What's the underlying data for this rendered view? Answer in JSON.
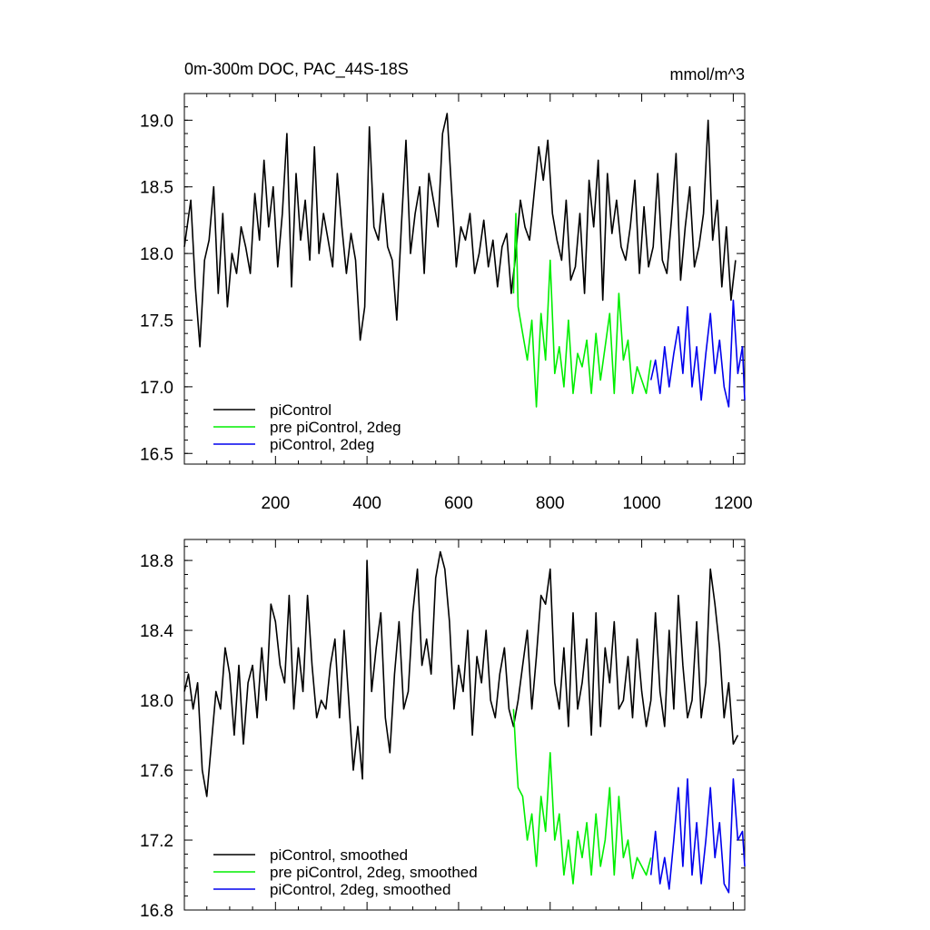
{
  "chart_data": [
    {
      "type": "line",
      "title": "0m-300m DOC, PAC_44S-18S",
      "units": "mmol/m^3",
      "xlim": [
        1,
        1225
      ],
      "ylim": [
        16.42,
        19.2
      ],
      "x_ticks": [
        200,
        400,
        600,
        800,
        1000,
        1200
      ],
      "x_tick_labels": [
        "200",
        "400",
        "600",
        "800",
        "1000",
        "1200"
      ],
      "y_ticks": [
        16.5,
        17.0,
        17.5,
        18.0,
        18.5,
        19.0
      ],
      "y_tick_labels": [
        "16.5",
        "17.0",
        "17.5",
        "18.0",
        "18.5",
        "19.0"
      ],
      "legend_position": "bottom-left",
      "series": [
        {
          "name": "piControl",
          "color": "#000000",
          "x": [
            1,
            15,
            25,
            35,
            45,
            55,
            65,
            75,
            85,
            95,
            105,
            115,
            125,
            135,
            145,
            155,
            165,
            175,
            185,
            195,
            205,
            215,
            225,
            235,
            245,
            255,
            265,
            275,
            285,
            295,
            305,
            315,
            325,
            335,
            345,
            355,
            365,
            375,
            385,
            395,
            405,
            415,
            425,
            435,
            445,
            455,
            465,
            475,
            485,
            495,
            505,
            515,
            525,
            535,
            545,
            555,
            565,
            575,
            585,
            595,
            605,
            615,
            625,
            635,
            645,
            655,
            665,
            675,
            685,
            695,
            705,
            715,
            725,
            735,
            745,
            755,
            765,
            775,
            785,
            795,
            805,
            815,
            825,
            835,
            845,
            855,
            865,
            875,
            885,
            895,
            905,
            915,
            925,
            935,
            945,
            955,
            965,
            975,
            985,
            995,
            1005,
            1015,
            1025,
            1035,
            1045,
            1055,
            1065,
            1075,
            1085,
            1095,
            1105,
            1115,
            1125,
            1135,
            1145,
            1155,
            1165,
            1175,
            1185,
            1195,
            1205
          ],
          "y": [
            18.05,
            18.4,
            17.75,
            17.3,
            17.95,
            18.1,
            18.5,
            17.7,
            18.3,
            17.6,
            18.0,
            17.85,
            18.2,
            18.05,
            17.85,
            18.45,
            18.1,
            18.7,
            18.2,
            18.5,
            17.9,
            18.3,
            18.9,
            17.75,
            18.6,
            18.1,
            18.4,
            17.95,
            18.8,
            18.0,
            18.3,
            18.1,
            17.9,
            18.6,
            18.2,
            17.85,
            18.15,
            17.95,
            17.35,
            17.6,
            18.95,
            18.2,
            18.1,
            18.45,
            18.05,
            17.95,
            17.5,
            18.2,
            18.85,
            18.0,
            18.3,
            18.5,
            17.85,
            18.6,
            18.4,
            18.2,
            18.9,
            19.05,
            18.45,
            17.9,
            18.2,
            18.1,
            18.3,
            17.85,
            18.0,
            18.25,
            17.9,
            18.1,
            17.75,
            18.05,
            18.15,
            17.7,
            18.0,
            18.4,
            18.2,
            18.1,
            18.45,
            18.8,
            18.55,
            18.85,
            18.3,
            18.1,
            17.95,
            18.4,
            17.8,
            17.9,
            18.3,
            17.7,
            18.55,
            18.2,
            18.7,
            17.65,
            18.6,
            18.15,
            18.4,
            18.05,
            17.95,
            18.2,
            18.55,
            17.85,
            18.35,
            17.9,
            18.05,
            18.6,
            17.95,
            17.85,
            18.25,
            18.75,
            17.8,
            18.2,
            18.5,
            17.9,
            18.05,
            18.3,
            19.0,
            18.1,
            18.4,
            17.75,
            18.2,
            17.65,
            17.95
          ]
        },
        {
          "name": "pre piControl, 2deg",
          "color": "#00ee00",
          "x": [
            720,
            725,
            730,
            740,
            750,
            760,
            770,
            780,
            790,
            800,
            810,
            820,
            830,
            840,
            850,
            860,
            870,
            880,
            890,
            900,
            910,
            920,
            930,
            940,
            950,
            960,
            970,
            980,
            990,
            1000,
            1010,
            1020
          ],
          "y": [
            17.7,
            18.3,
            17.6,
            17.4,
            17.2,
            17.5,
            16.85,
            17.55,
            17.2,
            17.95,
            17.1,
            17.3,
            17.0,
            17.5,
            16.95,
            17.25,
            17.15,
            17.35,
            16.95,
            17.4,
            17.05,
            17.3,
            17.55,
            16.95,
            17.7,
            17.2,
            17.35,
            16.95,
            17.15,
            17.05,
            16.95,
            17.2
          ]
        },
        {
          "name": "piControl, 2deg",
          "color": "#0000ee",
          "x": [
            1020,
            1030,
            1040,
            1050,
            1060,
            1070,
            1080,
            1090,
            1100,
            1110,
            1120,
            1130,
            1140,
            1150,
            1160,
            1170,
            1180,
            1190,
            1200,
            1210,
            1220,
            1225
          ],
          "y": [
            17.05,
            17.2,
            16.95,
            17.3,
            17.0,
            17.25,
            17.45,
            17.1,
            17.6,
            17.0,
            17.3,
            16.9,
            17.25,
            17.55,
            17.1,
            17.35,
            17.0,
            16.85,
            17.65,
            17.1,
            17.3,
            16.9
          ]
        }
      ]
    },
    {
      "type": "line",
      "xlim": [
        1,
        1225
      ],
      "ylim": [
        16.8,
        18.92
      ],
      "x_ticks": [
        200,
        400,
        600,
        800,
        1000,
        1200
      ],
      "y_ticks": [
        16.8,
        17.2,
        17.6,
        18.0,
        18.4,
        18.8
      ],
      "y_tick_labels": [
        "16.8",
        "17.2",
        "17.6",
        "18.0",
        "18.4",
        "18.8"
      ],
      "legend_position": "bottom-left",
      "series": [
        {
          "name": "piControl, smoothed",
          "color": "#000000",
          "x": [
            1,
            10,
            20,
            30,
            40,
            50,
            60,
            70,
            80,
            90,
            100,
            110,
            120,
            130,
            140,
            150,
            160,
            170,
            180,
            190,
            200,
            210,
            220,
            230,
            240,
            250,
            260,
            270,
            280,
            290,
            300,
            310,
            320,
            330,
            340,
            350,
            360,
            370,
            380,
            390,
            400,
            410,
            420,
            430,
            440,
            450,
            460,
            470,
            480,
            490,
            500,
            510,
            520,
            530,
            540,
            550,
            560,
            570,
            580,
            590,
            600,
            610,
            620,
            630,
            640,
            650,
            660,
            670,
            680,
            690,
            700,
            710,
            720,
            730,
            740,
            750,
            760,
            770,
            780,
            790,
            800,
            810,
            820,
            830,
            840,
            850,
            860,
            870,
            880,
            890,
            900,
            910,
            920,
            930,
            940,
            950,
            960,
            970,
            980,
            990,
            1000,
            1010,
            1020,
            1030,
            1040,
            1050,
            1060,
            1070,
            1080,
            1090,
            1100,
            1110,
            1120,
            1130,
            1140,
            1150,
            1160,
            1170,
            1180,
            1190,
            1200,
            1210
          ],
          "y": [
            18.05,
            18.15,
            17.95,
            18.1,
            17.6,
            17.45,
            17.75,
            18.05,
            17.95,
            18.3,
            18.15,
            17.8,
            18.2,
            17.75,
            18.1,
            18.2,
            17.9,
            18.3,
            18.0,
            18.55,
            18.45,
            18.2,
            18.1,
            18.6,
            17.95,
            18.3,
            18.05,
            18.6,
            18.2,
            17.9,
            18.0,
            17.95,
            18.2,
            18.35,
            17.9,
            18.4,
            18.0,
            17.6,
            17.85,
            17.55,
            18.8,
            18.05,
            18.3,
            18.5,
            17.9,
            17.7,
            18.15,
            18.45,
            17.95,
            18.05,
            18.5,
            18.75,
            18.2,
            18.35,
            18.15,
            18.7,
            18.85,
            18.75,
            18.45,
            17.95,
            18.2,
            18.05,
            18.4,
            17.8,
            18.25,
            18.1,
            18.4,
            18.0,
            17.9,
            18.15,
            18.3,
            17.95,
            17.85,
            18.0,
            18.2,
            18.4,
            17.95,
            18.25,
            18.6,
            18.55,
            18.75,
            18.1,
            17.95,
            18.3,
            17.85,
            18.5,
            17.95,
            18.1,
            18.35,
            17.8,
            18.5,
            17.85,
            18.3,
            18.1,
            18.45,
            17.95,
            18.0,
            18.25,
            17.9,
            18.35,
            18.05,
            17.85,
            18.0,
            18.5,
            18.05,
            17.85,
            18.4,
            17.95,
            18.6,
            18.2,
            17.9,
            18.0,
            18.45,
            17.9,
            18.1,
            18.75,
            18.55,
            18.3,
            17.9,
            18.1,
            17.75,
            17.8
          ]
        },
        {
          "name": "pre piControl, 2deg, smoothed",
          "color": "#00ee00",
          "x": [
            720,
            725,
            730,
            740,
            750,
            760,
            770,
            780,
            790,
            800,
            810,
            820,
            830,
            840,
            850,
            860,
            870,
            880,
            890,
            900,
            910,
            920,
            930,
            940,
            950,
            960,
            970,
            980,
            990,
            1000,
            1010,
            1020
          ],
          "y": [
            17.95,
            17.7,
            17.5,
            17.45,
            17.2,
            17.35,
            17.05,
            17.45,
            17.25,
            17.7,
            17.2,
            17.35,
            17.0,
            17.2,
            16.95,
            17.25,
            17.1,
            17.3,
            17.0,
            17.35,
            17.05,
            17.2,
            17.5,
            17.0,
            17.45,
            17.1,
            17.2,
            16.98,
            17.1,
            17.05,
            17.0,
            17.1
          ]
        },
        {
          "name": "piControl, 2deg, smoothed",
          "color": "#0000ee",
          "x": [
            1020,
            1030,
            1040,
            1050,
            1060,
            1070,
            1080,
            1090,
            1100,
            1110,
            1120,
            1130,
            1140,
            1150,
            1160,
            1170,
            1180,
            1190,
            1200,
            1210,
            1220,
            1225
          ],
          "y": [
            17.0,
            17.25,
            16.95,
            17.1,
            16.92,
            17.2,
            17.5,
            17.05,
            17.55,
            17.0,
            17.3,
            16.95,
            17.2,
            17.5,
            17.1,
            17.3,
            16.95,
            16.9,
            17.55,
            17.2,
            17.25,
            17.05
          ]
        }
      ]
    }
  ]
}
